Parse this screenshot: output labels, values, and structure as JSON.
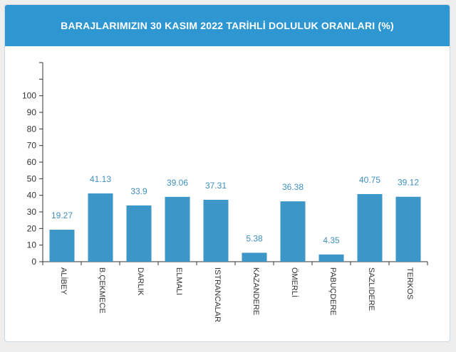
{
  "header": {
    "title": "BARAJLARIMIZIN 30 KASIM 2022 TARİHLİ DOLULUK ORANLARI (%)"
  },
  "chart_data": {
    "type": "bar",
    "title": "BARAJLARIMIZIN 30 KASIM 2022 TARİHLİ DOLULUK ORANLARI (%)",
    "categories": [
      "ALİBEY",
      "B.ÇEKMECE",
      "DARLIK",
      "ELMALI",
      "ISTRANCALAR",
      "KAZANDERE",
      "ÖMERLİ",
      "PABUÇDERE",
      "SAZLIDERE",
      "TERKOS"
    ],
    "values": [
      19.27,
      41.13,
      33.9,
      39.06,
      37.31,
      5.38,
      36.38,
      4.35,
      40.75,
      39.12
    ],
    "value_labels": [
      "19.27",
      "41.13",
      "33.9",
      "39.06",
      "37.31",
      "5.38",
      "36.38",
      "4.35",
      "40.75",
      "39.12"
    ],
    "yticks": [
      "0",
      "10",
      "20",
      "30",
      "40",
      "50",
      "60",
      "70",
      "80",
      "90",
      "100"
    ],
    "ylim": [
      0,
      120
    ],
    "xlabel": "",
    "ylabel": "",
    "grid": false,
    "colors": {
      "bar": "#3c96c8",
      "header": "#2e96d0",
      "value_label": "#3d8fbf",
      "axis": "#333333"
    }
  }
}
